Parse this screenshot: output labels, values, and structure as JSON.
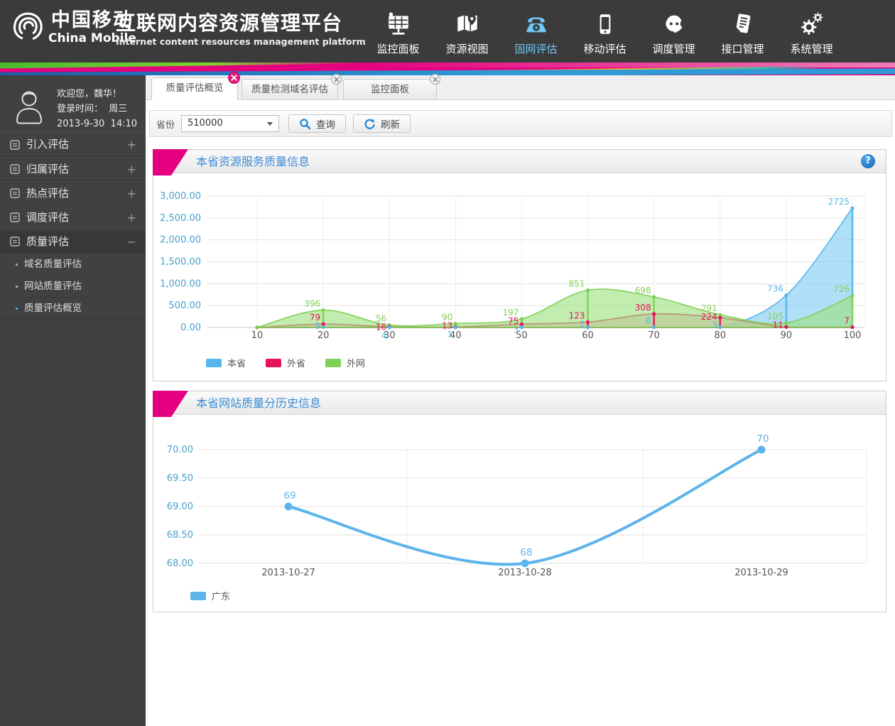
{
  "header": {
    "brand_cn": "中国移动",
    "brand_en": "China Mobile",
    "title": "互联网内容资源管理平台",
    "subtitle": "Internet content resources management platform",
    "nav": [
      {
        "label": "监控面板",
        "icon": "dashboard-icon",
        "active": false
      },
      {
        "label": "资源视图",
        "icon": "map-icon",
        "active": false
      },
      {
        "label": "固网评估",
        "icon": "phone-icon",
        "active": true
      },
      {
        "label": "移动评估",
        "icon": "mobile-icon",
        "active": false
      },
      {
        "label": "调度管理",
        "icon": "operator-icon",
        "active": false
      },
      {
        "label": "接口管理",
        "icon": "interface-doc-icon",
        "active": false
      },
      {
        "label": "系统管理",
        "icon": "gears-icon",
        "active": false
      }
    ]
  },
  "sidebar": {
    "welcome": "欢迎您，魏华！",
    "login_label": "登录时间：",
    "login_day": "周三",
    "login_date": "2013-9-30",
    "login_time": "14:10",
    "menu": [
      {
        "label": "引入评估",
        "state": "+",
        "active": false
      },
      {
        "label": "归属评估",
        "state": "+",
        "active": false
      },
      {
        "label": "热点评估",
        "state": "+",
        "active": false
      },
      {
        "label": "调度评估",
        "state": "+",
        "active": false
      },
      {
        "label": "质量评估",
        "state": "−",
        "active": true
      }
    ],
    "submenu": [
      {
        "label": "域名质量评估",
        "active": false
      },
      {
        "label": "网站质量评估",
        "active": false
      },
      {
        "label": "质量评估概览",
        "active": true
      }
    ]
  },
  "tabs": [
    {
      "label": "质量评估概览",
      "active": true
    },
    {
      "label": "质量检测域名评估",
      "active": false
    },
    {
      "label": "监控面板",
      "active": false
    }
  ],
  "filter": {
    "province_label": "省份",
    "province_value": "510000",
    "search_label": "查询",
    "refresh_label": "刷新"
  },
  "panels": [
    {
      "title": "本省资源服务质量信息",
      "help_glyph": "?"
    },
    {
      "title": "本省网站质量分历史信息"
    }
  ],
  "chart_data": [
    {
      "type": "area",
      "title": "本省资源服务质量信息",
      "x": [
        10,
        20,
        30,
        40,
        50,
        60,
        70,
        80,
        90,
        100
      ],
      "series": [
        {
          "name": "本省",
          "color": "#56b6ec",
          "fill": "#7ecdf2",
          "values": [
            0,
            9,
            4,
            1,
            3,
            2,
            6,
            3,
            736,
            2725
          ]
        },
        {
          "name": "外省",
          "color": "#e5135c",
          "fill": "#f29ebd",
          "values": [
            0,
            79,
            16,
            13,
            75,
            123,
            308,
            224,
            11,
            7
          ]
        },
        {
          "name": "外网",
          "color": "#7fd156",
          "fill": "#9ce180",
          "values": [
            0,
            396,
            56,
            90,
            197,
            851,
            698,
            291,
            105,
            726
          ]
        }
      ],
      "ylim": [
        0,
        3000
      ],
      "ytick_labels": [
        "3,000.00",
        "2,500.00",
        "2,000.00",
        "1,500.00",
        "1,000.00",
        "500.00",
        "0.00"
      ],
      "grid": true,
      "legend_position": "bottom-left"
    },
    {
      "type": "line",
      "title": "本省网站质量分历史信息",
      "categories": [
        "2013-10-27",
        "2013-10-28",
        "2013-10-29"
      ],
      "series": [
        {
          "name": "广东",
          "color": "#5db4ea",
          "values": [
            69,
            68,
            70
          ]
        }
      ],
      "ylim": [
        68,
        70
      ],
      "ytick_labels": [
        "70.00",
        "69.50",
        "69.00",
        "68.50",
        "68.00"
      ],
      "grid": true,
      "legend_position": "bottom-left"
    }
  ],
  "colors": {
    "header_bg": "#3b3b3b",
    "accent_blue": "#6fc8f5",
    "magenta": "#e4007f",
    "panel_title_blue": "#3d8dd5",
    "axis_label_blue": "#47a0cd",
    "tick_text": "#555555",
    "gridline": "#e3e3e3"
  }
}
